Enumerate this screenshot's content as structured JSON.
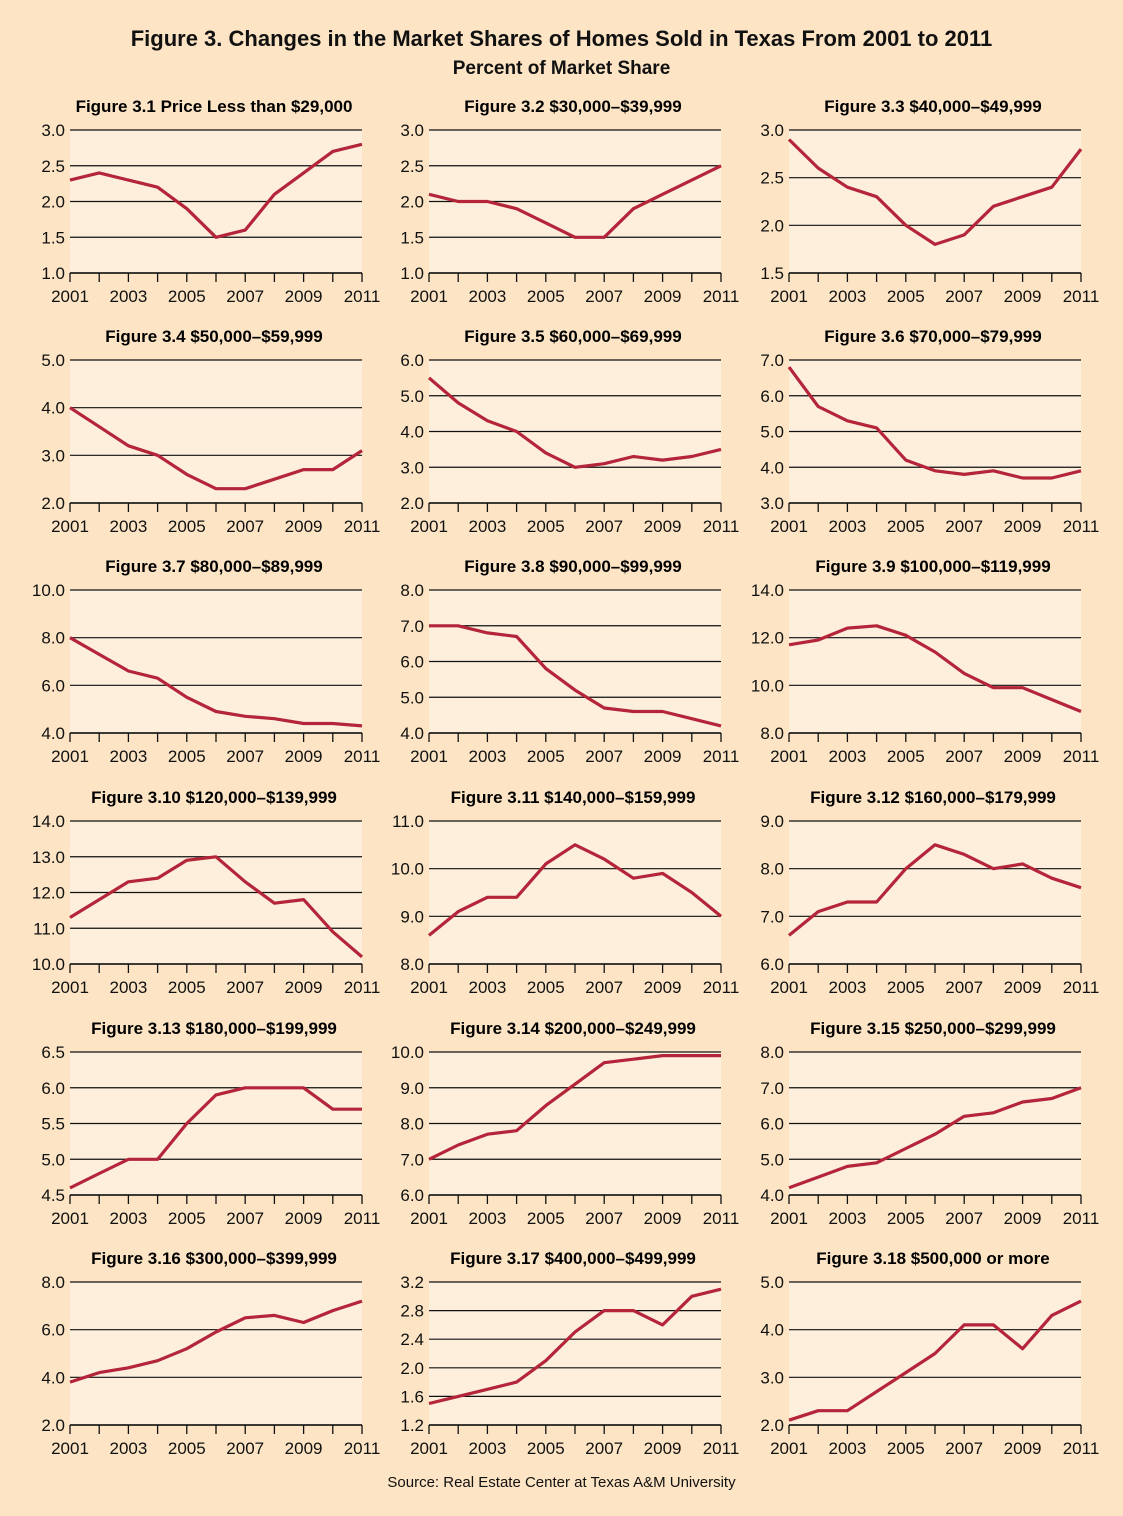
{
  "title": "Figure 3. Changes in the Market Shares of Homes Sold in Texas From 2001 to 2011",
  "subtitle": "Percent of Market Share",
  "source": "Source: Real Estate Center at Texas A&M University",
  "colors": {
    "line": "#b5253a",
    "background": "#fce4c4",
    "plot_background": "#fdefdc",
    "grid": "#111111"
  },
  "chart_data": [
    {
      "type": "line",
      "title": "Figure 3.1 Price Less than $29,000",
      "x": [
        2001,
        2002,
        2003,
        2004,
        2005,
        2006,
        2007,
        2008,
        2009,
        2010,
        2011
      ],
      "xticks": [
        "2001",
        "2003",
        "2005",
        "2007",
        "2009",
        "2011"
      ],
      "ylim": [
        1,
        3
      ],
      "yticks": [
        "1.0",
        "1.5",
        "2.0",
        "2.5",
        "3.0"
      ],
      "grid": true,
      "values": [
        2.3,
        2.4,
        2.3,
        2.2,
        1.9,
        1.5,
        1.6,
        2.1,
        2.4,
        2.7,
        2.8
      ]
    },
    {
      "type": "line",
      "title": "Figure 3.2 $30,000–$39,999",
      "x": [
        2001,
        2002,
        2003,
        2004,
        2005,
        2006,
        2007,
        2008,
        2009,
        2010,
        2011
      ],
      "xticks": [
        "2001",
        "2003",
        "2005",
        "2007",
        "2009",
        "2011"
      ],
      "ylim": [
        1,
        3
      ],
      "yticks": [
        "1.0",
        "1.5",
        "2.0",
        "2.5",
        "3.0"
      ],
      "grid": true,
      "values": [
        2.1,
        2.0,
        2.0,
        1.9,
        1.7,
        1.5,
        1.5,
        1.9,
        2.1,
        2.3,
        2.5
      ]
    },
    {
      "type": "line",
      "title": "Figure 3.3 $40,000–$49,999",
      "x": [
        2001,
        2002,
        2003,
        2004,
        2005,
        2006,
        2007,
        2008,
        2009,
        2010,
        2011
      ],
      "xticks": [
        "2001",
        "2003",
        "2005",
        "2007",
        "2009",
        "2011"
      ],
      "ylim": [
        1.5,
        3
      ],
      "yticks": [
        "1.5",
        "2.0",
        "2.5",
        "3.0"
      ],
      "grid": true,
      "values": [
        2.9,
        2.6,
        2.4,
        2.3,
        2.0,
        1.8,
        1.9,
        2.2,
        2.3,
        2.4,
        2.8
      ]
    },
    {
      "type": "line",
      "title": "Figure 3.4 $50,000–$59,999",
      "x": [
        2001,
        2002,
        2003,
        2004,
        2005,
        2006,
        2007,
        2008,
        2009,
        2010,
        2011
      ],
      "xticks": [
        "2001",
        "2003",
        "2005",
        "2007",
        "2009",
        "2011"
      ],
      "ylim": [
        2,
        5
      ],
      "yticks": [
        "2.0",
        "3.0",
        "4.0",
        "5.0"
      ],
      "grid": true,
      "values": [
        4.0,
        3.6,
        3.2,
        3.0,
        2.6,
        2.3,
        2.3,
        2.5,
        2.7,
        2.7,
        3.1
      ]
    },
    {
      "type": "line",
      "title": "Figure 3.5 $60,000–$69,999",
      "x": [
        2001,
        2002,
        2003,
        2004,
        2005,
        2006,
        2007,
        2008,
        2009,
        2010,
        2011
      ],
      "xticks": [
        "2001",
        "2003",
        "2005",
        "2007",
        "2009",
        "2011"
      ],
      "ylim": [
        2,
        6
      ],
      "yticks": [
        "2.0",
        "3.0",
        "4.0",
        "5.0",
        "6.0"
      ],
      "grid": true,
      "values": [
        5.5,
        4.8,
        4.3,
        4.0,
        3.4,
        3.0,
        3.1,
        3.3,
        3.2,
        3.3,
        3.5
      ]
    },
    {
      "type": "line",
      "title": "Figure 3.6 $70,000–$79,999",
      "x": [
        2001,
        2002,
        2003,
        2004,
        2005,
        2006,
        2007,
        2008,
        2009,
        2010,
        2011
      ],
      "xticks": [
        "2001",
        "2003",
        "2005",
        "2007",
        "2009",
        "2011"
      ],
      "ylim": [
        3,
        7
      ],
      "yticks": [
        "3.0",
        "4.0",
        "5.0",
        "6.0",
        "7.0"
      ],
      "grid": true,
      "values": [
        6.8,
        5.7,
        5.3,
        5.1,
        4.2,
        3.9,
        3.8,
        3.9,
        3.7,
        3.7,
        3.9
      ]
    },
    {
      "type": "line",
      "title": "Figure 3.7 $80,000–$89,999",
      "x": [
        2001,
        2002,
        2003,
        2004,
        2005,
        2006,
        2007,
        2008,
        2009,
        2010,
        2011
      ],
      "xticks": [
        "2001",
        "2003",
        "2005",
        "2007",
        "2009",
        "2011"
      ],
      "ylim": [
        4,
        10
      ],
      "yticks": [
        "4.0",
        "6.0",
        "8.0",
        "10.0"
      ],
      "grid": true,
      "values": [
        8.0,
        7.3,
        6.6,
        6.3,
        5.5,
        4.9,
        4.7,
        4.6,
        4.4,
        4.4,
        4.3
      ]
    },
    {
      "type": "line",
      "title": "Figure 3.8 $90,000–$99,999",
      "x": [
        2001,
        2002,
        2003,
        2004,
        2005,
        2006,
        2007,
        2008,
        2009,
        2010,
        2011
      ],
      "xticks": [
        "2001",
        "2003",
        "2005",
        "2007",
        "2009",
        "2011"
      ],
      "ylim": [
        4,
        8
      ],
      "yticks": [
        "4.0",
        "5.0",
        "6.0",
        "7.0",
        "8.0"
      ],
      "grid": true,
      "values": [
        7.0,
        7.0,
        6.8,
        6.7,
        5.8,
        5.2,
        4.7,
        4.6,
        4.6,
        4.4,
        4.2
      ]
    },
    {
      "type": "line",
      "title": "Figure 3.9 $100,000–$119,999",
      "x": [
        2001,
        2002,
        2003,
        2004,
        2005,
        2006,
        2007,
        2008,
        2009,
        2010,
        2011
      ],
      "xticks": [
        "2001",
        "2003",
        "2005",
        "2007",
        "2009",
        "2011"
      ],
      "ylim": [
        8,
        14
      ],
      "yticks": [
        "8.0",
        "10.0",
        "12.0",
        "14.0"
      ],
      "grid": true,
      "values": [
        11.7,
        11.9,
        12.4,
        12.5,
        12.1,
        11.4,
        10.5,
        9.9,
        9.9,
        9.4,
        8.9
      ]
    },
    {
      "type": "line",
      "title": "Figure 3.10 $120,000–$139,999",
      "x": [
        2001,
        2002,
        2003,
        2004,
        2005,
        2006,
        2007,
        2008,
        2009,
        2010,
        2011
      ],
      "xticks": [
        "2001",
        "2003",
        "2005",
        "2007",
        "2009",
        "2011"
      ],
      "ylim": [
        10,
        14
      ],
      "yticks": [
        "10.0",
        "11.0",
        "12.0",
        "13.0",
        "14.0"
      ],
      "grid": true,
      "values": [
        11.3,
        11.8,
        12.3,
        12.4,
        12.9,
        13.0,
        12.3,
        11.7,
        11.8,
        10.9,
        10.2
      ]
    },
    {
      "type": "line",
      "title": "Figure 3.11 $140,000–$159,999",
      "x": [
        2001,
        2002,
        2003,
        2004,
        2005,
        2006,
        2007,
        2008,
        2009,
        2010,
        2011
      ],
      "xticks": [
        "2001",
        "2003",
        "2005",
        "2007",
        "2009",
        "2011"
      ],
      "ylim": [
        8,
        11
      ],
      "yticks": [
        "8.0",
        "9.0",
        "10.0",
        "11.0"
      ],
      "grid": true,
      "values": [
        8.6,
        9.1,
        9.4,
        9.4,
        10.1,
        10.5,
        10.2,
        9.8,
        9.9,
        9.5,
        9.0
      ]
    },
    {
      "type": "line",
      "title": "Figure 3.12 $160,000–$179,999",
      "x": [
        2001,
        2002,
        2003,
        2004,
        2005,
        2006,
        2007,
        2008,
        2009,
        2010,
        2011
      ],
      "xticks": [
        "2001",
        "2003",
        "2005",
        "2007",
        "2009",
        "2011"
      ],
      "ylim": [
        6,
        9
      ],
      "yticks": [
        "6.0",
        "7.0",
        "8.0",
        "9.0"
      ],
      "grid": true,
      "values": [
        6.6,
        7.1,
        7.3,
        7.3,
        8.0,
        8.5,
        8.3,
        8.0,
        8.1,
        7.8,
        7.6
      ]
    },
    {
      "type": "line",
      "title": "Figure 3.13 $180,000–$199,999",
      "x": [
        2001,
        2002,
        2003,
        2004,
        2005,
        2006,
        2007,
        2008,
        2009,
        2010,
        2011
      ],
      "xticks": [
        "2001",
        "2003",
        "2005",
        "2007",
        "2009",
        "2011"
      ],
      "ylim": [
        4.5,
        6.5
      ],
      "yticks": [
        "4.5",
        "5.0",
        "5.5",
        "6.0",
        "6.5"
      ],
      "grid": true,
      "values": [
        4.6,
        4.8,
        5.0,
        5.0,
        5.5,
        5.9,
        6.0,
        6.0,
        6.0,
        5.7,
        5.7
      ]
    },
    {
      "type": "line",
      "title": "Figure 3.14 $200,000–$249,999",
      "x": [
        2001,
        2002,
        2003,
        2004,
        2005,
        2006,
        2007,
        2008,
        2009,
        2010,
        2011
      ],
      "xticks": [
        "2001",
        "2003",
        "2005",
        "2007",
        "2009",
        "2011"
      ],
      "ylim": [
        6,
        10
      ],
      "yticks": [
        "6.0",
        "7.0",
        "8.0",
        "9.0",
        "10.0"
      ],
      "grid": true,
      "values": [
        7.0,
        7.4,
        7.7,
        7.8,
        8.5,
        9.1,
        9.7,
        9.8,
        9.9,
        9.9,
        9.9
      ]
    },
    {
      "type": "line",
      "title": "Figure 3.15 $250,000–$299,999",
      "x": [
        2001,
        2002,
        2003,
        2004,
        2005,
        2006,
        2007,
        2008,
        2009,
        2010,
        2011
      ],
      "xticks": [
        "2001",
        "2003",
        "2005",
        "2007",
        "2009",
        "2011"
      ],
      "ylim": [
        4,
        8
      ],
      "yticks": [
        "4.0",
        "5.0",
        "6.0",
        "7.0",
        "8.0"
      ],
      "grid": true,
      "values": [
        4.2,
        4.5,
        4.8,
        4.9,
        5.3,
        5.7,
        6.2,
        6.3,
        6.6,
        6.7,
        7.0
      ]
    },
    {
      "type": "line",
      "title": "Figure 3.16 $300,000–$399,999",
      "x": [
        2001,
        2002,
        2003,
        2004,
        2005,
        2006,
        2007,
        2008,
        2009,
        2010,
        2011
      ],
      "xticks": [
        "2001",
        "2003",
        "2005",
        "2007",
        "2009",
        "2011"
      ],
      "ylim": [
        2,
        8
      ],
      "yticks": [
        "2.0",
        "4.0",
        "6.0",
        "8.0"
      ],
      "grid": true,
      "values": [
        3.8,
        4.2,
        4.4,
        4.7,
        5.2,
        5.9,
        6.5,
        6.6,
        6.3,
        6.8,
        7.2
      ]
    },
    {
      "type": "line",
      "title": "Figure 3.17 $400,000–$499,999",
      "x": [
        2001,
        2002,
        2003,
        2004,
        2005,
        2006,
        2007,
        2008,
        2009,
        2010,
        2011
      ],
      "xticks": [
        "2001",
        "2003",
        "2005",
        "2007",
        "2009",
        "2011"
      ],
      "ylim": [
        1.2,
        3.2
      ],
      "yticks": [
        "1.2",
        "1.6",
        "2.0",
        "2.4",
        "2.8",
        "3.2"
      ],
      "grid": true,
      "values": [
        1.5,
        1.6,
        1.7,
        1.8,
        2.1,
        2.5,
        2.8,
        2.8,
        2.6,
        3.0,
        3.1
      ]
    },
    {
      "type": "line",
      "title": "Figure 3.18 $500,000 or more",
      "x": [
        2001,
        2002,
        2003,
        2004,
        2005,
        2006,
        2007,
        2008,
        2009,
        2010,
        2011
      ],
      "xticks": [
        "2001",
        "2003",
        "2005",
        "2007",
        "2009",
        "2011"
      ],
      "ylim": [
        2,
        5
      ],
      "yticks": [
        "2.0",
        "3.0",
        "4.0",
        "5.0"
      ],
      "grid": true,
      "values": [
        2.1,
        2.3,
        2.3,
        2.7,
        3.1,
        3.5,
        4.1,
        4.1,
        3.6,
        4.3,
        4.6
      ]
    }
  ]
}
